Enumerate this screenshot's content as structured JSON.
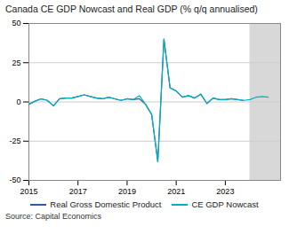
{
  "chart_data": {
    "type": "line",
    "title": "Canada CE GDP Nowcast and Real GDP (% q/q annualised)",
    "source": "Source: Capital Economics",
    "x": [
      2015.0,
      2015.25,
      2015.5,
      2015.75,
      2016.0,
      2016.25,
      2016.5,
      2016.75,
      2017.0,
      2017.25,
      2017.5,
      2017.75,
      2018.0,
      2018.25,
      2018.5,
      2018.75,
      2019.0,
      2019.25,
      2019.5,
      2019.75,
      2020.0,
      2020.25,
      2020.5,
      2020.75,
      2021.0,
      2021.25,
      2021.5,
      2021.75,
      2022.0,
      2022.25,
      2022.5,
      2022.75,
      2023.0,
      2023.25,
      2023.5,
      2023.75,
      2024.0,
      2024.25,
      2024.5,
      2024.75
    ],
    "series": [
      {
        "name": "Real Gross Domestic Product",
        "color": "#3458a4",
        "values": [
          -1.5,
          0.5,
          2.0,
          1.0,
          -2.5,
          2.0,
          2.5,
          2.5,
          3.5,
          4.5,
          3.5,
          2.5,
          2.0,
          3.0,
          2.0,
          1.0,
          2.0,
          1.5,
          2.0,
          -1.5,
          -8.0,
          -38.0,
          40.0,
          9.0,
          7.0,
          3.0,
          4.0,
          2.5,
          5.0,
          -1.0,
          2.5,
          1.5,
          1.5,
          2.0,
          1.5,
          1.0,
          null,
          null,
          null,
          null
        ]
      },
      {
        "name": "CE GDP Nowcast",
        "color": "#00b0c0",
        "values": [
          -1.5,
          0.5,
          2.0,
          1.0,
          -2.5,
          2.0,
          2.5,
          2.5,
          3.5,
          4.5,
          3.5,
          2.5,
          2.0,
          3.0,
          2.0,
          1.0,
          2.0,
          1.5,
          4.0,
          -1.5,
          -8.0,
          -38.0,
          40.0,
          9.0,
          7.0,
          3.0,
          4.0,
          2.5,
          5.0,
          -1.0,
          2.5,
          1.5,
          1.5,
          2.0,
          1.5,
          1.0,
          1.5,
          3.0,
          3.5,
          3.0
        ]
      }
    ],
    "shaded": {
      "x": [
        2024.0,
        2025.25
      ],
      "color": "#d8d8d8"
    },
    "xlim": [
      2015.0,
      2025.25
    ],
    "xticks": [
      2015,
      2017,
      2019,
      2021,
      2023
    ],
    "ylim": [
      -50,
      50
    ],
    "yticks": [
      -50,
      -25,
      0,
      25,
      50
    ],
    "grid": true,
    "legend": "bottom"
  }
}
